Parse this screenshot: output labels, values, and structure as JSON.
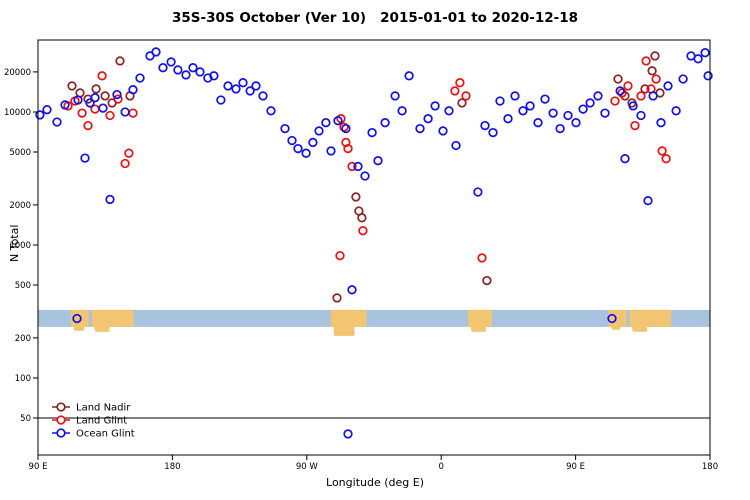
{
  "title": "35S-30S October (Ver 10)   2015-01-01 to 2020-12-18",
  "chart_data": {
    "type": "scatter",
    "title": "35S-30S October (Ver 10)   2015-01-01 to 2020-12-18",
    "xlabel": "Longitude (deg E)",
    "ylabel": "N Total",
    "x_axis": {
      "range_deg_east": [
        90,
        540
      ],
      "ticks": [
        {
          "lon": 90,
          "label": "90 E"
        },
        {
          "lon": 180,
          "label": "180"
        },
        {
          "lon": 270,
          "label": "90 W"
        },
        {
          "lon": 360,
          "label": "0"
        },
        {
          "lon": 450,
          "label": "90 E"
        },
        {
          "lon": 540,
          "label": "180"
        }
      ]
    },
    "y_axis": {
      "scale": "log",
      "ticks": [
        50,
        100,
        200,
        500,
        1000,
        2000,
        5000,
        10000,
        20000
      ],
      "range": [
        28,
        35000
      ]
    },
    "reference_line_value": 50,
    "map_strip": {
      "description": "land/ocean strip for the 35S-30S latitude band",
      "value_band": [
        242,
        325
      ],
      "ocean_color": "#a9c2dd",
      "land_color": "#f2c572",
      "land_segments_lon": [
        [
          112,
          124
        ],
        [
          126,
          154
        ],
        [
          286,
          310
        ],
        [
          378,
          394
        ],
        [
          472,
          484
        ],
        [
          486,
          514
        ]
      ],
      "land_bumps_lon": [
        [
          114,
          121,
          5
        ],
        [
          128,
          138,
          6
        ],
        [
          288,
          302,
          10
        ],
        [
          380,
          390,
          6
        ],
        [
          474,
          480,
          4
        ],
        [
          488,
          498,
          6
        ]
      ]
    },
    "legend": {
      "position": "bottom-left",
      "entries": [
        {
          "label": "Land Nadir",
          "color": "#8b2323"
        },
        {
          "label": "Land Glint",
          "color": "#ee1111"
        },
        {
          "label": "Ocean Glint",
          "color": "#1111ee"
        }
      ]
    },
    "series": [
      {
        "name": "Land Nadir",
        "color": "#8b2323",
        "points": [
          [
            112.8,
            15700
          ],
          [
            118.1,
            13900
          ],
          [
            123.5,
            12500
          ],
          [
            128.9,
            14900
          ],
          [
            134.9,
            13200
          ],
          [
            139.6,
            11700
          ],
          [
            144.9,
            24200
          ],
          [
            151.6,
            13200
          ],
          [
            290.2,
            400
          ],
          [
            302.9,
            2300
          ],
          [
            304.9,
            1800
          ],
          [
            306.9,
            1600
          ],
          [
            373.9,
            11700
          ],
          [
            390.6,
            540
          ],
          [
            478.4,
            17700
          ],
          [
            483.1,
            13200
          ],
          [
            487.8,
            11700
          ],
          [
            496.5,
            14900
          ],
          [
            501.2,
            20400
          ],
          [
            503.2,
            26400
          ],
          [
            506.5,
            13900
          ]
        ]
      },
      {
        "name": "Land Glint",
        "color": "#ee1111",
        "points": [
          [
            110.1,
            11100
          ],
          [
            114.8,
            12100
          ],
          [
            119.5,
            9800
          ],
          [
            123.5,
            7900
          ],
          [
            128.2,
            10500
          ],
          [
            132.9,
            18700
          ],
          [
            138.2,
            9400
          ],
          [
            143.6,
            12500
          ],
          [
            148.3,
            4100
          ],
          [
            150.9,
            4900
          ],
          [
            153.6,
            9800
          ],
          [
            292.2,
            830
          ],
          [
            292.9,
            8900
          ],
          [
            294.9,
            7700
          ],
          [
            296.2,
            5900
          ],
          [
            297.6,
            5300
          ],
          [
            300.3,
            3900
          ],
          [
            307.6,
            1280
          ],
          [
            369.2,
            14400
          ],
          [
            372.5,
            16600
          ],
          [
            376.6,
            13200
          ],
          [
            387.3,
            800
          ],
          [
            476.4,
            12100
          ],
          [
            481.1,
            13900
          ],
          [
            485.1,
            15700
          ],
          [
            489.8,
            7900
          ],
          [
            493.8,
            13200
          ],
          [
            497.2,
            24200
          ],
          [
            500.5,
            14900
          ],
          [
            503.9,
            17700
          ],
          [
            507.9,
            5100
          ],
          [
            510.6,
            4450
          ]
        ]
      },
      {
        "name": "Ocean Glint",
        "color": "#1111ee",
        "points": [
          [
            91.3,
            9500
          ],
          [
            96,
            10400
          ],
          [
            102.7,
            8400
          ],
          [
            108.1,
            11300
          ],
          [
            116.1,
            280
          ],
          [
            116.8,
            12300
          ],
          [
            121.5,
            4500
          ],
          [
            124.8,
            11700
          ],
          [
            128.2,
            12800
          ],
          [
            133.5,
            10700
          ],
          [
            138.2,
            2200
          ],
          [
            142.9,
            13500
          ],
          [
            148.3,
            10000
          ],
          [
            153.6,
            14700
          ],
          [
            158.3,
            18000
          ],
          [
            165,
            26400
          ],
          [
            169,
            28300
          ],
          [
            173.7,
            21500
          ],
          [
            179.1,
            23800
          ],
          [
            183.7,
            20700
          ],
          [
            189.1,
            19000
          ],
          [
            193.8,
            21500
          ],
          [
            198.5,
            20000
          ],
          [
            203.8,
            18000
          ],
          [
            207.8,
            18700
          ],
          [
            212.5,
            12300
          ],
          [
            217.2,
            15700
          ],
          [
            222.6,
            14900
          ],
          [
            227.3,
            16600
          ],
          [
            232,
            14400
          ],
          [
            236,
            15700
          ],
          [
            240.7,
            13200
          ],
          [
            246,
            10200
          ],
          [
            255.4,
            7500
          ],
          [
            260.1,
            6100
          ],
          [
            264.1,
            5300
          ],
          [
            269.5,
            4900
          ],
          [
            274.1,
            5900
          ],
          [
            278.2,
            7200
          ],
          [
            282.8,
            8300
          ],
          [
            286.2,
            5100
          ],
          [
            290.9,
            8600
          ],
          [
            296.2,
            7500
          ],
          [
            297.6,
            38
          ],
          [
            300.3,
            460
          ],
          [
            304.3,
            3900
          ],
          [
            309,
            3300
          ],
          [
            313.7,
            7000
          ],
          [
            317.7,
            4300
          ],
          [
            322.4,
            8300
          ],
          [
            329.1,
            13200
          ],
          [
            333.8,
            10200
          ],
          [
            338.5,
            18700
          ],
          [
            345.8,
            7500
          ],
          [
            351.2,
            8900
          ],
          [
            355.9,
            11100
          ],
          [
            361.2,
            7200
          ],
          [
            365.2,
            10200
          ],
          [
            369.9,
            5600
          ],
          [
            384.6,
            2500
          ],
          [
            389.3,
            7900
          ],
          [
            394.7,
            7000
          ],
          [
            399.4,
            12100
          ],
          [
            404.7,
            8900
          ],
          [
            409.4,
            13200
          ],
          [
            414.8,
            10200
          ],
          [
            419.5,
            11100
          ],
          [
            424.8,
            8300
          ],
          [
            429.5,
            12500
          ],
          [
            434.9,
            9800
          ],
          [
            439.6,
            7500
          ],
          [
            444.9,
            9400
          ],
          [
            450.3,
            8300
          ],
          [
            455,
            10500
          ],
          [
            459.7,
            11700
          ],
          [
            465,
            13200
          ],
          [
            469.7,
            9800
          ],
          [
            474.4,
            280
          ],
          [
            479.8,
            14400
          ],
          [
            483.1,
            4450
          ],
          [
            488.5,
            11100
          ],
          [
            493.8,
            9400
          ],
          [
            498.5,
            2150
          ],
          [
            501.9,
            13200
          ],
          [
            507.2,
            8300
          ],
          [
            511.9,
            15700
          ],
          [
            517.3,
            10200
          ],
          [
            522,
            17700
          ],
          [
            527.3,
            26400
          ],
          [
            532,
            25100
          ],
          [
            536.7,
            27900
          ],
          [
            538.7,
            18700
          ]
        ]
      }
    ]
  }
}
